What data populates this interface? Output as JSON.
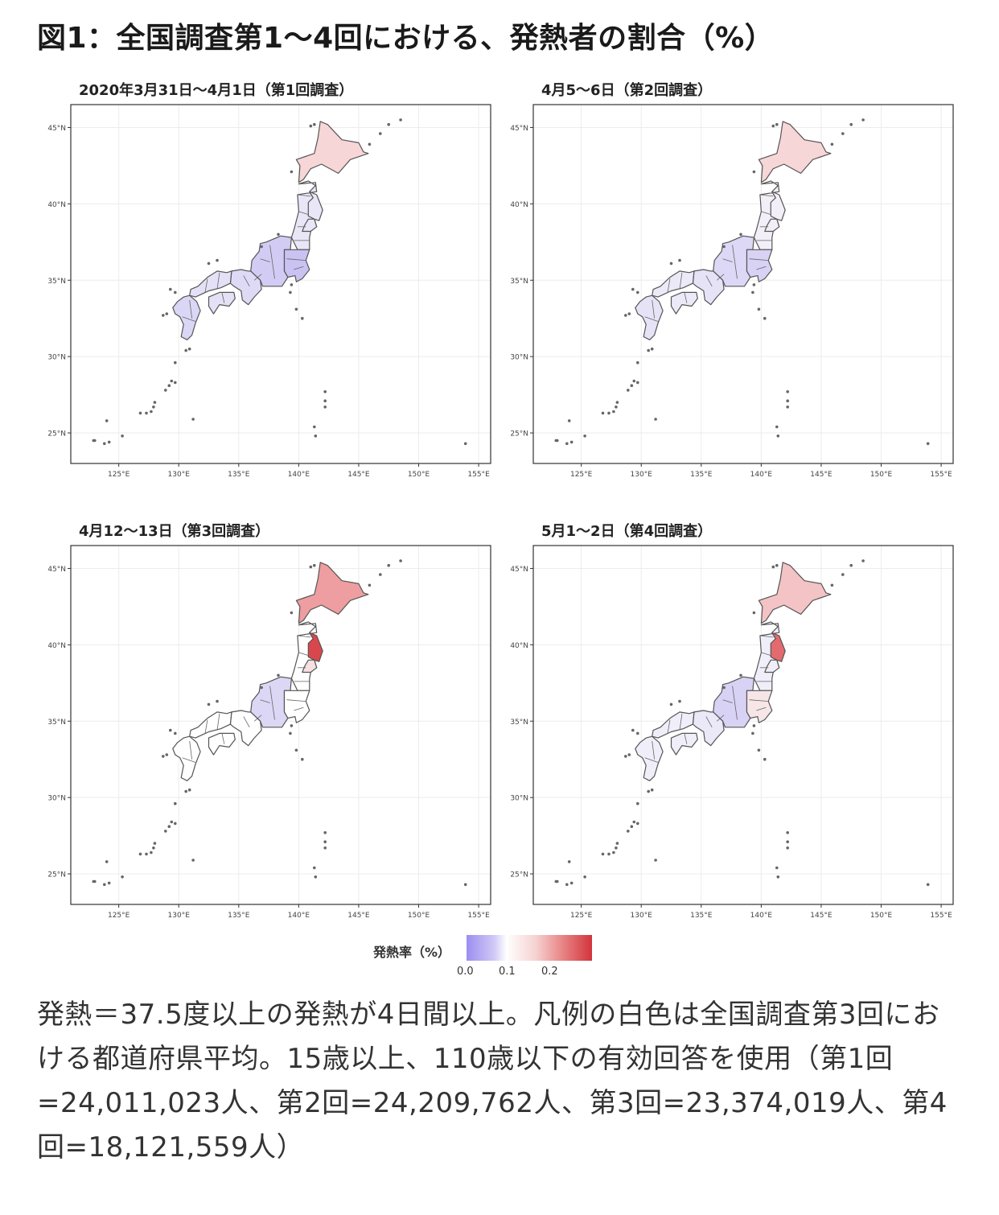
{
  "title": "図1：全国調査第1〜4回における、発熱者の割合（%）",
  "panels": [
    {
      "title": "2020年3月31日〜4月1日（第1回調査）",
      "scheme": "p1"
    },
    {
      "title": "4月5〜6日（第2回調査）",
      "scheme": "p2"
    },
    {
      "title": "4月12〜13日（第3回調査）",
      "scheme": "p3"
    },
    {
      "title": "5月1〜2日（第4回調査）",
      "scheme": "p4"
    }
  ],
  "axes": {
    "lat_labels": [
      "45°N",
      "40°N",
      "35°N",
      "30°N",
      "25°N"
    ],
    "lon_labels": [
      "125°E",
      "130°E",
      "135°E",
      "140°E",
      "145°E",
      "150°E",
      "155°E"
    ],
    "lat_values": [
      45,
      40,
      35,
      30,
      25
    ],
    "lon_values": [
      125,
      130,
      135,
      140,
      145,
      150,
      155
    ],
    "lon_range": [
      121,
      156
    ],
    "lat_range": [
      23,
      46.5
    ]
  },
  "legend": {
    "title": "発熱率（%）",
    "ticks": [
      "0.0",
      "0.1",
      "0.2"
    ],
    "tick_values": [
      0.0,
      0.1,
      0.2
    ],
    "colors": {
      "low": "#9b8ef0",
      "mid": "#ffffff",
      "high": "#d2343c"
    }
  },
  "region_colors": {
    "p1": {
      "hokkaido": "#f7d6d8",
      "tohoku": "#e8e6f7",
      "kanto": "#c9c2f2",
      "chubu": "#d2ccf4",
      "kinki": "#dedaf6",
      "chugoku": "#e4e1f7",
      "shikoku": "#e4e1f7",
      "kyushu": "#dad6f5",
      "iwate": "#e8e6f7",
      "miyagi": "#e8e6f7"
    },
    "p2": {
      "hokkaido": "#f7d6d8",
      "tohoku": "#f2eff8",
      "kanto": "#d8d2f5",
      "chubu": "#ddd8f5",
      "kinki": "#e6e3f7",
      "chugoku": "#eceaf8",
      "shikoku": "#eceaf8",
      "kyushu": "#e6e3f7",
      "iwate": "#f2eff8",
      "miyagi": "#f2eff8"
    },
    "p3": {
      "hokkaido": "#ee9ea0",
      "tohoku": "#ffffff",
      "kanto": "#ffffff",
      "chubu": "#dcd7f5",
      "kinki": "#ffffff",
      "chugoku": "#ffffff",
      "shikoku": "#ffffff",
      "kyushu": "#ffffff",
      "iwate": "#d9474d",
      "miyagi": "#f6e0e1"
    },
    "p4": {
      "hokkaido": "#f3c3c5",
      "tohoku": "#f0eef9",
      "kanto": "#f6e6e7",
      "chubu": "#d8d2f5",
      "kinki": "#ebe8f8",
      "chugoku": "#f0eef9",
      "shikoku": "#f0eef9",
      "kyushu": "#f0eef9",
      "iwate": "#e36a6e",
      "miyagi": "#f0eef9"
    }
  },
  "caption": "発熱＝37.5度以上の発熱が4日間以上。凡例の白色は全国調査第3回における都道府県平均。15歳以上、110歳以下の有効回答を使用（第1回=24,011,023人、第2回=24,209,762人、第3回=23,374,019人、第4回=18,121,559人）"
}
